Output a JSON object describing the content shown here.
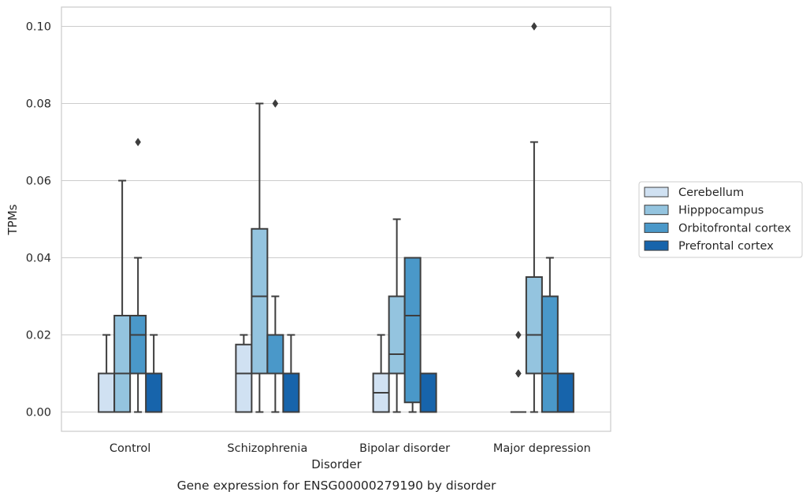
{
  "chart_data": {
    "type": "box",
    "title": "",
    "caption": "Gene expression for ENSG00000279190 by disorder",
    "xlabel": "Disorder",
    "ylabel": "TPMs",
    "ylim": [
      -0.005,
      0.105
    ],
    "yticks": [
      0.0,
      0.02,
      0.04,
      0.06,
      0.08,
      0.1
    ],
    "ytick_labels": [
      "0.00",
      "0.02",
      "0.04",
      "0.06",
      "0.08",
      "0.10"
    ],
    "grid": "horizontal",
    "legend_position": "right",
    "categories": [
      "Control",
      "Schizophrenia",
      "Bipolar disorder",
      "Major depression"
    ],
    "series": [
      {
        "name": "Cerebellum",
        "color": "#d0e1f2",
        "boxes": [
          {
            "whislo": 0.0,
            "q1": 0.0,
            "med": 0.0,
            "q3": 0.01,
            "whishi": 0.02,
            "fliers": []
          },
          {
            "whislo": 0.0,
            "q1": 0.0,
            "med": 0.01,
            "q3": 0.0175,
            "whishi": 0.02,
            "fliers": []
          },
          {
            "whislo": 0.0,
            "q1": 0.0,
            "med": 0.005,
            "q3": 0.01,
            "whishi": 0.02,
            "fliers": []
          },
          {
            "whislo": 0.0,
            "q1": 0.0,
            "med": 0.0,
            "q3": 0.0,
            "whishi": 0.0,
            "fliers": [
              0.01,
              0.01,
              0.02
            ]
          }
        ]
      },
      {
        "name": "Hipppocampus",
        "color": "#94c4df",
        "boxes": [
          {
            "whislo": 0.0,
            "q1": 0.0,
            "med": 0.01,
            "q3": 0.025,
            "whishi": 0.06,
            "fliers": []
          },
          {
            "whislo": 0.0,
            "q1": 0.01,
            "med": 0.03,
            "q3": 0.0475,
            "whishi": 0.08,
            "fliers": []
          },
          {
            "whislo": 0.0,
            "q1": 0.01,
            "med": 0.015,
            "q3": 0.03,
            "whishi": 0.05,
            "fliers": []
          },
          {
            "whislo": 0.0,
            "q1": 0.01,
            "med": 0.02,
            "q3": 0.035,
            "whishi": 0.07,
            "fliers": [
              0.1
            ]
          }
        ]
      },
      {
        "name": "Orbitofrontal cortex",
        "color": "#4a98c9",
        "boxes": [
          {
            "whislo": 0.0,
            "q1": 0.01,
            "med": 0.02,
            "q3": 0.025,
            "whishi": 0.04,
            "fliers": [
              0.07
            ]
          },
          {
            "whislo": 0.0,
            "q1": 0.01,
            "med": 0.01,
            "q3": 0.02,
            "whishi": 0.03,
            "fliers": [
              0.08
            ]
          },
          {
            "whislo": 0.0,
            "q1": 0.0025,
            "med": 0.025,
            "q3": 0.04,
            "whishi": 0.04,
            "fliers": []
          },
          {
            "whislo": 0.0,
            "q1": 0.0,
            "med": 0.01,
            "q3": 0.03,
            "whishi": 0.04,
            "fliers": []
          }
        ]
      },
      {
        "name": "Prefrontal cortex",
        "color": "#1764ab",
        "boxes": [
          {
            "whislo": 0.0,
            "q1": 0.0,
            "med": 0.0,
            "q3": 0.01,
            "whishi": 0.02,
            "fliers": []
          },
          {
            "whislo": 0.0,
            "q1": 0.0,
            "med": 0.0,
            "q3": 0.01,
            "whishi": 0.02,
            "fliers": []
          },
          {
            "whislo": 0.0,
            "q1": 0.0,
            "med": 0.0,
            "q3": 0.01,
            "whishi": 0.01,
            "fliers": []
          },
          {
            "whislo": 0.0,
            "q1": 0.0,
            "med": 0.0,
            "q3": 0.01,
            "whishi": 0.01,
            "fliers": []
          }
        ]
      }
    ]
  }
}
